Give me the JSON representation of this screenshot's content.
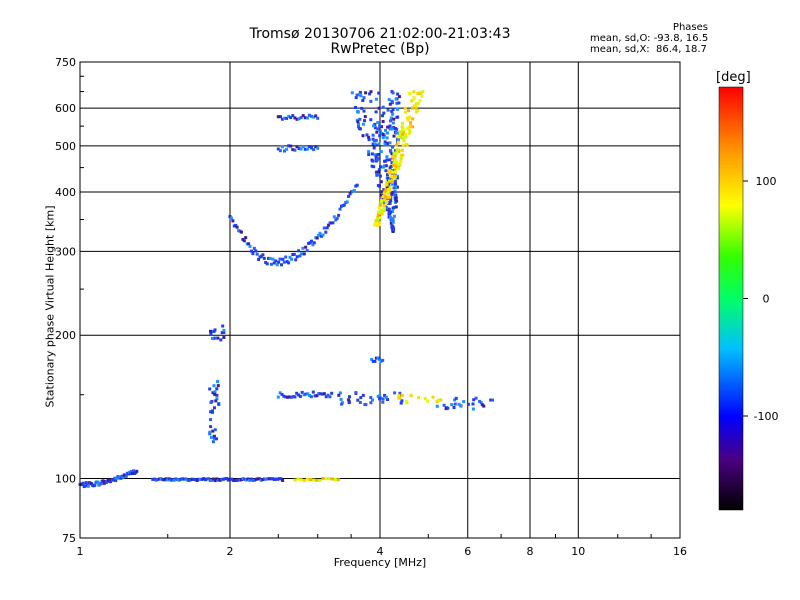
{
  "chart_data": {
    "type": "scatter",
    "title": "Tromsø 20130706 21:02:00-21:03:43",
    "subtitle": "RwPretec (Bp)",
    "xlabel": "Frequency [MHz]",
    "ylabel": "Stationary phase Virtual Height [km]",
    "x_scale": "log",
    "y_scale": "log",
    "xlim": [
      1,
      16
    ],
    "ylim": [
      75,
      750
    ],
    "x_ticks": [
      1,
      2,
      4,
      6,
      8,
      10,
      16
    ],
    "y_ticks": [
      75,
      100,
      200,
      300,
      400,
      500,
      600,
      750
    ],
    "grid": true,
    "colorbar": {
      "label": "[deg]",
      "range": [
        -180,
        180
      ],
      "ticks": [
        100,
        0,
        -100
      ]
    },
    "legend": {
      "title": "Phases",
      "lines": [
        "mean, sd,O: -93.8, 16.5",
        "mean, sd,X:  86.4, 18.7"
      ]
    },
    "series": [
      {
        "name": "O",
        "color": "#1e3cff",
        "clusters": [
          {
            "x": [
              1.0,
              1.3
            ],
            "y": [
              97,
              104
            ],
            "n": 55,
            "shape": "ramp"
          },
          {
            "x": [
              1.4,
              2.55
            ],
            "y": [
              99,
              100
            ],
            "n": 80,
            "shape": "flat"
          },
          {
            "x": [
              1.82,
              1.9
            ],
            "y": [
              118,
              160
            ],
            "n": 30,
            "shape": "cloud"
          },
          {
            "x": [
              1.82,
              1.95
            ],
            "y": [
              195,
              210
            ],
            "n": 15,
            "shape": "cloud"
          },
          {
            "x": [
              2.5,
              3.2
            ],
            "y": [
              148,
              152
            ],
            "n": 30,
            "shape": "flat"
          },
          {
            "x": [
              3.3,
              4.5
            ],
            "y": [
              143,
              152
            ],
            "n": 35,
            "shape": "cloud"
          },
          {
            "x": [
              5.2,
              6.8
            ],
            "y": [
              140,
              148
            ],
            "n": 25,
            "shape": "cloud"
          },
          {
            "x": [
              3.85,
              4.05
            ],
            "y": [
              176,
              180
            ],
            "n": 8,
            "shape": "flat"
          },
          {
            "x": [
              2.0,
              3.6
            ],
            "y": [
              285,
              370
            ],
            "n": 90,
            "shape": "trace"
          },
          {
            "x": [
              2.5,
              3.0
            ],
            "y": [
              565,
              580
            ],
            "n": 20,
            "shape": "flat"
          },
          {
            "x": [
              2.5,
              3.0
            ],
            "y": [
              485,
              500
            ],
            "n": 20,
            "shape": "flat"
          },
          {
            "x": [
              3.4,
              4.4
            ],
            "y": [
              330,
              650
            ],
            "n": 260,
            "shape": "fan"
          }
        ]
      },
      {
        "name": "X",
        "color": "#ffe600",
        "clusters": [
          {
            "x": [
              3.6,
              4.9
            ],
            "y": [
              340,
              650
            ],
            "n": 160,
            "shape": "fanx"
          },
          {
            "x": [
              2.7,
              3.3
            ],
            "y": [
              99,
              100
            ],
            "n": 15,
            "shape": "flat"
          },
          {
            "x": [
              4.3,
              5.3
            ],
            "y": [
              143,
              150
            ],
            "n": 15,
            "shape": "cloud"
          }
        ]
      }
    ]
  }
}
